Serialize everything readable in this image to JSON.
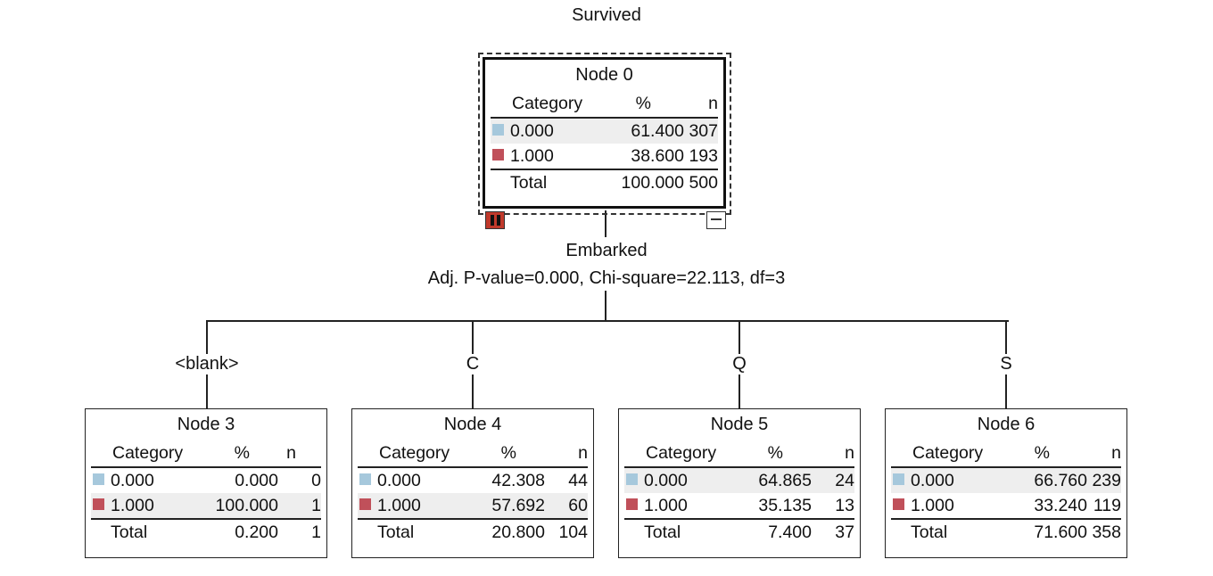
{
  "tree": {
    "title": "Survived",
    "colors": {
      "cat0": "#a6c8dc",
      "cat1": "#c0505a"
    },
    "headers": {
      "category": "Category",
      "pct": "%",
      "n": "n",
      "total": "Total"
    },
    "split": {
      "variable": "Embarked",
      "stats": "Adj. P-value=0.000, Chi-square=22.113, df=3"
    },
    "root": {
      "label": "Node 0",
      "rows": [
        {
          "cat": "0.000",
          "pct": "61.400",
          "n": "307"
        },
        {
          "cat": "1.000",
          "pct": "38.600",
          "n": "193"
        }
      ],
      "total": {
        "pct": "100.000",
        "n": "500"
      }
    },
    "children": [
      {
        "branch": "<blank>",
        "label": "Node 3",
        "rows": [
          {
            "cat": "0.000",
            "pct": "0.000",
            "n": "0"
          },
          {
            "cat": "1.000",
            "pct": "100.000",
            "n": "1"
          }
        ],
        "total": {
          "pct": "0.200",
          "n": "1"
        }
      },
      {
        "branch": "C",
        "label": "Node 4",
        "rows": [
          {
            "cat": "0.000",
            "pct": "42.308",
            "n": "44"
          },
          {
            "cat": "1.000",
            "pct": "57.692",
            "n": "60"
          }
        ],
        "total": {
          "pct": "20.800",
          "n": "104"
        }
      },
      {
        "branch": "Q",
        "label": "Node 5",
        "rows": [
          {
            "cat": "0.000",
            "pct": "64.865",
            "n": "24"
          },
          {
            "cat": "1.000",
            "pct": "35.135",
            "n": "13"
          }
        ],
        "total": {
          "pct": "7.400",
          "n": "37"
        }
      },
      {
        "branch": "S",
        "label": "Node 6",
        "rows": [
          {
            "cat": "0.000",
            "pct": "66.760",
            "n": "239"
          },
          {
            "cat": "1.000",
            "pct": "33.240",
            "n": "119"
          }
        ],
        "total": {
          "pct": "71.600",
          "n": "358"
        }
      }
    ]
  }
}
